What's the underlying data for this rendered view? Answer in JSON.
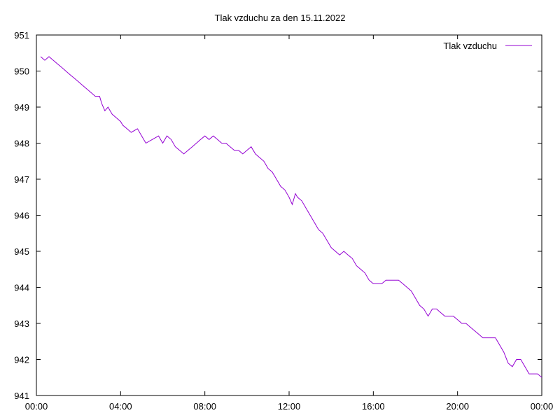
{
  "chart_data": {
    "type": "line",
    "title": "Tlak vzduchu za den 15.11.2022",
    "xlabel": "",
    "ylabel": "",
    "ylim": [
      941,
      951
    ],
    "yticks": [
      941,
      942,
      943,
      944,
      945,
      946,
      947,
      948,
      949,
      950,
      951
    ],
    "xlim_hours": [
      0,
      24
    ],
    "xticks": [
      "00:00",
      "04:00",
      "08:00",
      "12:00",
      "16:00",
      "20:00",
      "00:00"
    ],
    "grid": false,
    "legend_position": "top-right",
    "series": [
      {
        "name": "Tlak vzduchu",
        "color": "#9400d3",
        "x_hours": [
          0.2,
          0.4,
          0.6,
          0.8,
          1.0,
          1.2,
          1.4,
          1.6,
          1.8,
          2.0,
          2.2,
          2.4,
          2.6,
          2.8,
          3.0,
          3.1,
          3.25,
          3.4,
          3.5,
          3.6,
          3.8,
          4.0,
          4.1,
          4.3,
          4.5,
          4.8,
          5.0,
          5.2,
          5.5,
          5.8,
          6.0,
          6.2,
          6.4,
          6.6,
          6.8,
          7.0,
          7.2,
          7.4,
          7.6,
          7.8,
          8.0,
          8.2,
          8.4,
          8.6,
          8.8,
          9.0,
          9.2,
          9.4,
          9.6,
          9.8,
          10.0,
          10.2,
          10.4,
          10.6,
          10.8,
          11.0,
          11.2,
          11.4,
          11.6,
          11.8,
          12.0,
          12.15,
          12.3,
          12.4,
          12.6,
          12.8,
          13.0,
          13.2,
          13.4,
          13.6,
          13.8,
          14.0,
          14.2,
          14.4,
          14.6,
          14.8,
          15.0,
          15.2,
          15.4,
          15.6,
          15.8,
          16.0,
          16.2,
          16.4,
          16.6,
          16.8,
          17.0,
          17.2,
          17.4,
          17.6,
          17.8,
          18.0,
          18.2,
          18.4,
          18.6,
          18.8,
          19.0,
          19.2,
          19.4,
          19.6,
          19.8,
          20.0,
          20.2,
          20.4,
          20.6,
          20.8,
          21.0,
          21.2,
          21.4,
          21.6,
          21.8,
          22.0,
          22.2,
          22.4,
          22.6,
          22.8,
          23.0,
          23.2,
          23.4,
          23.6,
          23.8,
          24.0
        ],
        "y": [
          950.4,
          950.3,
          950.4,
          950.3,
          950.2,
          950.1,
          950.0,
          949.9,
          949.8,
          949.7,
          949.6,
          949.5,
          949.4,
          949.3,
          949.3,
          949.1,
          948.9,
          949.0,
          948.9,
          948.8,
          948.7,
          948.6,
          948.5,
          948.4,
          948.3,
          948.4,
          948.2,
          948.0,
          948.1,
          948.2,
          948.0,
          948.2,
          948.1,
          947.9,
          947.8,
          947.7,
          947.8,
          947.9,
          948.0,
          948.1,
          948.2,
          948.1,
          948.2,
          948.1,
          948.0,
          948.0,
          947.9,
          947.8,
          947.8,
          947.7,
          947.8,
          947.9,
          947.7,
          947.6,
          947.5,
          947.3,
          947.2,
          947.0,
          946.8,
          946.7,
          946.5,
          946.3,
          946.6,
          946.5,
          946.4,
          946.2,
          946.0,
          945.8,
          945.6,
          945.5,
          945.3,
          945.1,
          945.0,
          944.9,
          945.0,
          944.9,
          944.8,
          944.6,
          944.5,
          944.4,
          944.2,
          944.1,
          944.1,
          944.1,
          944.2,
          944.2,
          944.2,
          944.2,
          944.1,
          944.0,
          943.9,
          943.7,
          943.5,
          943.4,
          943.2,
          943.4,
          943.4,
          943.3,
          943.2,
          943.2,
          943.2,
          943.1,
          943.0,
          943.0,
          942.9,
          942.8,
          942.7,
          942.6,
          942.6,
          942.6,
          942.6,
          942.4,
          942.2,
          941.9,
          941.8,
          942.0,
          942.0,
          941.8,
          941.6,
          941.6,
          941.6,
          941.5
        ]
      }
    ]
  }
}
